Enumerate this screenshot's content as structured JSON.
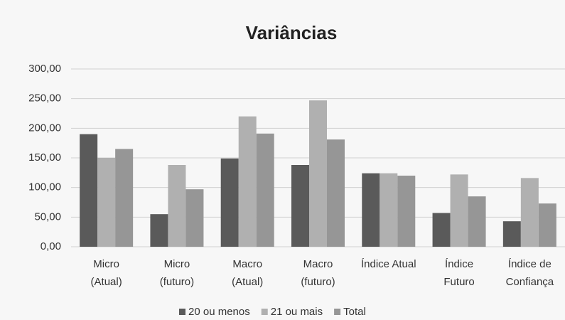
{
  "chart_data": {
    "type": "bar",
    "title": "Variâncias",
    "categories": [
      [
        "Micro",
        "(Atual)"
      ],
      [
        "Micro",
        "(futuro)"
      ],
      [
        "Macro",
        "(Atual)"
      ],
      [
        "Macro",
        "(futuro)"
      ],
      [
        "Índice Atual"
      ],
      [
        "Índice",
        "Futuro"
      ],
      [
        "Índice de",
        "Confiança"
      ]
    ],
    "series": [
      {
        "name": "20 ou menos",
        "color": "#5a5a5a",
        "values": [
          190,
          55,
          149,
          138,
          124,
          57,
          43
        ]
      },
      {
        "name": "21 ou mais",
        "color": "#b0b0b0",
        "values": [
          150,
          138,
          220,
          247,
          124,
          122,
          116
        ]
      },
      {
        "name": "Total",
        "color": "#969696",
        "values": [
          165,
          97,
          191,
          181,
          120,
          85,
          73
        ]
      }
    ],
    "ylim": [
      0,
      300
    ],
    "yticks": [
      {
        "value": 0,
        "label": "0,00"
      },
      {
        "value": 50,
        "label": "50,00"
      },
      {
        "value": 100,
        "label": "100,00"
      },
      {
        "value": 150,
        "label": "150,00"
      },
      {
        "value": 200,
        "label": "200,00"
      },
      {
        "value": 250,
        "label": "250,00"
      },
      {
        "value": 300,
        "label": "300,00"
      }
    ],
    "grid": true,
    "legend": "bottom"
  }
}
